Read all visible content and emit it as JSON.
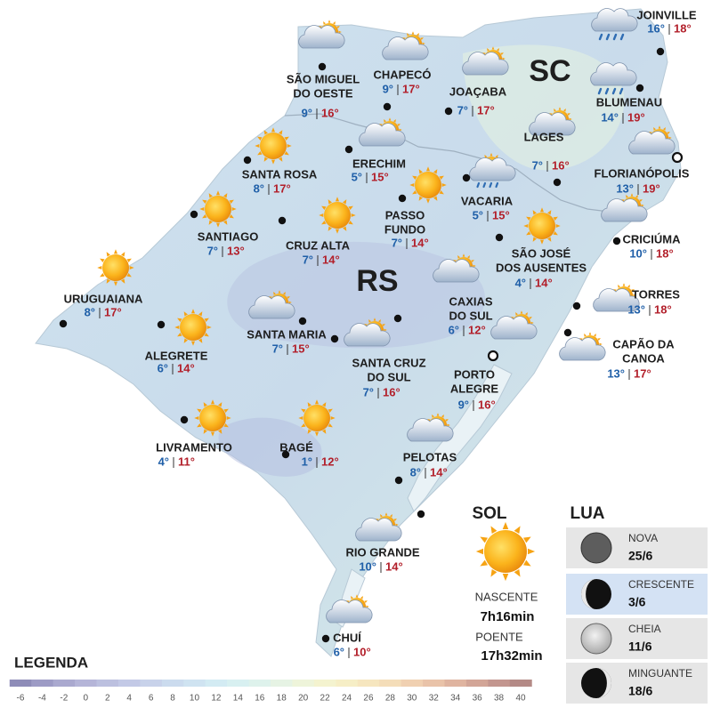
{
  "map": {
    "regions": [
      "SC",
      "RS"
    ],
    "cities": [
      {
        "name": [
          "SÃO MIGUEL",
          "DO OESTE"
        ],
        "min": "9°",
        "max": "16°"
      },
      {
        "name": [
          "CHAPECÓ"
        ],
        "min": "9°",
        "max": "17°"
      },
      {
        "name": [
          "JOAÇABA"
        ],
        "min": "7°",
        "max": "17°"
      },
      {
        "name": [
          "JOINVILLE"
        ],
        "min": "16°",
        "max": "18°"
      },
      {
        "name": [
          "BLUMENAU"
        ],
        "min": "14°",
        "max": "19°"
      },
      {
        "name": [
          "LAGES"
        ],
        "min": "7°",
        "max": "16°"
      },
      {
        "name": [
          "FLORIANÓPOLIS"
        ],
        "min": "13°",
        "max": "19°"
      },
      {
        "name": [
          "SANTA ROSA"
        ],
        "min": "8°",
        "max": "17°"
      },
      {
        "name": [
          "ERECHIM"
        ],
        "min": "5°",
        "max": "15°"
      },
      {
        "name": [
          "VACARIA"
        ],
        "min": "5°",
        "max": "15°"
      },
      {
        "name": [
          "PASSO",
          "FUNDO"
        ],
        "min": "7°",
        "max": "14°"
      },
      {
        "name": [
          "SANTIAGO"
        ],
        "min": "7°",
        "max": "13°"
      },
      {
        "name": [
          "CRUZ ALTA"
        ],
        "min": "7°",
        "max": "14°"
      },
      {
        "name": [
          "SÃO JOSÉ",
          "DOS AUSENTES"
        ],
        "min": "4°",
        "max": "14°"
      },
      {
        "name": [
          "CRICIÚMA"
        ],
        "min": "10°",
        "max": "18°"
      },
      {
        "name": [
          "URUGUAIANA"
        ],
        "min": "8°",
        "max": "17°"
      },
      {
        "name": [
          "ALEGRETE"
        ],
        "min": "6°",
        "max": "14°"
      },
      {
        "name": [
          "SANTA MARIA"
        ],
        "min": "7°",
        "max": "15°"
      },
      {
        "name": [
          "CAXIAS",
          "DO SUL"
        ],
        "min": "6°",
        "max": "12°"
      },
      {
        "name": [
          "TORRES"
        ],
        "min": "13°",
        "max": "18°"
      },
      {
        "name": [
          "CAPÃO DA",
          "CANOA"
        ],
        "min": "13°",
        "max": "17°"
      },
      {
        "name": [
          "SANTA CRUZ",
          "DO SUL"
        ],
        "min": "7°",
        "max": "16°"
      },
      {
        "name": [
          "PORTO",
          "ALEGRE"
        ],
        "min": "9°",
        "max": "16°"
      },
      {
        "name": [
          "LIVRAMENTO"
        ],
        "min": "4°",
        "max": "11°"
      },
      {
        "name": [
          "BAGÉ"
        ],
        "min": "1°",
        "max": "12°"
      },
      {
        "name": [
          "PELOTAS"
        ],
        "min": "8°",
        "max": "14°"
      },
      {
        "name": [
          "RIO GRANDE"
        ],
        "min": "10°",
        "max": "14°"
      },
      {
        "name": [
          "CHUÍ"
        ],
        "min": "6°",
        "max": "10°"
      }
    ]
  },
  "legend": {
    "title": "LEGENDA",
    "ticks": [
      -6,
      -4,
      -2,
      0,
      2,
      4,
      6,
      8,
      10,
      12,
      14,
      16,
      18,
      20,
      22,
      24,
      26,
      28,
      30,
      32,
      34,
      36,
      38,
      40
    ],
    "colors": [
      "#8e8cb8",
      "#9d9bc5",
      "#aaa9cf",
      "#b5b5d8",
      "#bcc0df",
      "#c3c9e6",
      "#c8d2ea",
      "#cbdbee",
      "#cfe3f1",
      "#d3ebf3",
      "#d8f0f1",
      "#def2ec",
      "#e6f3e4",
      "#eef4da",
      "#f4f3cf",
      "#f6eec6",
      "#f6e6bf",
      "#f4ddb9",
      "#f0d0b1",
      "#e9c3a9",
      "#dfb4a0",
      "#d2a597",
      "#c3968f",
      "#b48a86"
    ]
  },
  "sun": {
    "title": "SOL",
    "rise_label": "NASCENTE",
    "rise": "7h16min",
    "set_label": "POENTE",
    "set": "17h32min"
  },
  "moon": {
    "title": "LUA",
    "phases": [
      {
        "name": "NOVA",
        "date": "25/6"
      },
      {
        "name": "CRESCENTE",
        "date": "3/6"
      },
      {
        "name": "CHEIA",
        "date": "11/6"
      },
      {
        "name": "MINGUANTE",
        "date": "18/6"
      }
    ]
  }
}
